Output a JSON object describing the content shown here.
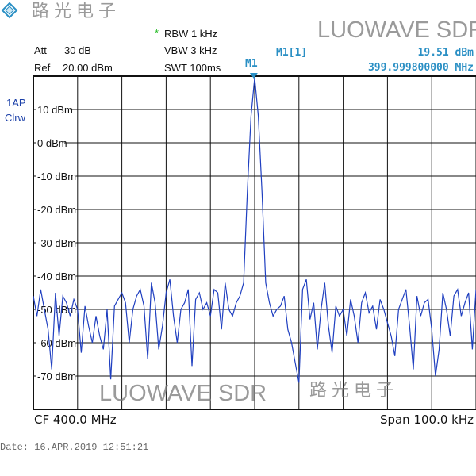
{
  "header": {
    "logo": "rohde-schwarz-logo",
    "att_label": "Att",
    "att_value": "30 dB",
    "ref_label": "Ref",
    "ref_value": "20.00 dBm",
    "rbw_star": "*",
    "rbw": "RBW 1 kHz",
    "vbw": "VBW 3 kHz",
    "swt": "SWT 100ms",
    "marker_name": "M1",
    "marker_id": "M1[1]",
    "marker_level": "19.51 dBm",
    "marker_freq": "399.999800000 MHz"
  },
  "trace_info": {
    "detector": "1AP",
    "mode": "Clrw"
  },
  "footer": {
    "cf": "CF 400.0 MHz",
    "span": "Span 100.0 kHz",
    "date": "Date: 16.APR.2019  12:51:21"
  },
  "watermark": {
    "cn": "路光电子",
    "en": "LUOWAVE SDR"
  },
  "colors": {
    "trace": "#1f3fc0",
    "marker": "#2a8fc4",
    "star": "#22bb22",
    "grid": "#111111"
  },
  "chart_data": {
    "type": "line",
    "x_unit": "MHz",
    "xlim": [
      399.95,
      400.05
    ],
    "ylim": [
      -80,
      20
    ],
    "grid": true,
    "x_divisions": 10,
    "y_ticks": [
      {
        "value": 10,
        "label": "10 dBm"
      },
      {
        "value": 0,
        "label": "0 dBm"
      },
      {
        "value": -10,
        "label": "-10 dBm"
      },
      {
        "value": -20,
        "label": "-20 dBm"
      },
      {
        "value": -30,
        "label": "-30 dBm"
      },
      {
        "value": -40,
        "label": "-40 dBm"
      },
      {
        "value": -50,
        "label": "-50 dBm"
      },
      {
        "value": -60,
        "label": "-60 dBm"
      },
      {
        "value": -70,
        "label": "-70 dBm"
      }
    ],
    "marker": {
      "x": 399.9998,
      "y": 19.51
    },
    "values_dBm": [
      -46,
      -52,
      -44,
      -50,
      -56,
      -68,
      -45,
      -58,
      -46,
      -48,
      -52,
      -47,
      -50,
      -63,
      -49,
      -55,
      -60,
      -52,
      -58,
      -62,
      -50,
      -71,
      -49,
      -47,
      -45,
      -48,
      -60,
      -50,
      -46,
      -44,
      -49,
      -65,
      -42,
      -48,
      -62,
      -55,
      -45,
      -41,
      -52,
      -60,
      -50,
      -48,
      -44,
      -67,
      -47,
      -45,
      -50,
      -48,
      -52,
      -44,
      -45,
      -56,
      -42,
      -50,
      -52,
      -48,
      -46,
      -42,
      -15,
      8,
      19.51,
      8,
      -15,
      -42,
      -48,
      -52,
      -50,
      -49,
      -46,
      -56,
      -60,
      -66,
      -72,
      -44,
      -41,
      -53,
      -48,
      -62,
      -50,
      -42,
      -55,
      -63,
      -49,
      -52,
      -50,
      -58,
      -47,
      -52,
      -60,
      -48,
      -45,
      -51,
      -49,
      -56,
      -47,
      -50,
      -54,
      -58,
      -64,
      -50,
      -47,
      -44,
      -55,
      -68,
      -46,
      -52,
      -48,
      -47,
      -56,
      -70,
      -62,
      -45,
      -50,
      -58,
      -46,
      -44,
      -52,
      -48,
      -45,
      -62,
      -44
    ]
  }
}
